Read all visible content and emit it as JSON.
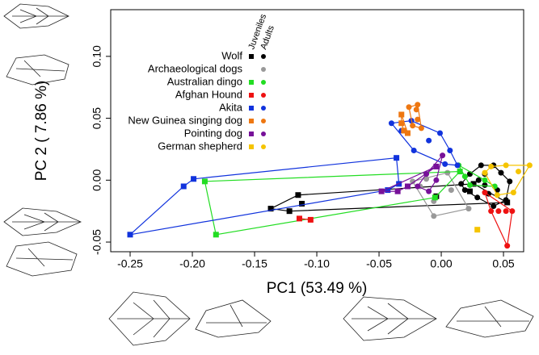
{
  "chart_data": {
    "type": "scatter",
    "xlabel": "PC1 (53.49 %)",
    "ylabel": "PC 2 ( 7.86 %)",
    "xlim": [
      -0.2656,
      0.0662
    ],
    "ylim": [
      -0.0578,
      0.1377
    ],
    "xticks": [
      {
        "value": -0.25,
        "label": "-0.25"
      },
      {
        "value": -0.2,
        "label": "-0.20"
      },
      {
        "value": -0.15,
        "label": "-0.15"
      },
      {
        "value": -0.1,
        "label": "-0.10"
      },
      {
        "value": -0.05,
        "label": "-0.05"
      },
      {
        "value": 0,
        "label": "0.00"
      },
      {
        "value": 0.05,
        "label": "0.05"
      }
    ],
    "yticks": [
      {
        "value": -0.05,
        "label": "-0.05"
      },
      {
        "value": 0,
        "label": "0.00"
      },
      {
        "value": 0.05,
        "label": "0.05"
      },
      {
        "value": 0.1,
        "label": "0.10"
      }
    ],
    "legend_columns": [
      "Juveniles",
      "Adults"
    ],
    "series": [
      {
        "name": "Wolf",
        "color": "#000000",
        "juveniles": {
          "x": [
            -0.137,
            -0.122,
            -0.115,
            -0.112,
            -0.004,
            0.023,
            0.026,
            0.053
          ],
          "y": [
            -0.023,
            -0.025,
            -0.012,
            -0.019,
            -0.013,
            -0.009,
            -0.003,
            -0.018
          ]
        },
        "adults": {
          "x": [
            0.032,
            0.042,
            0.055,
            0.052,
            0.042,
            0.029,
            0.019,
            0.023,
            0.035,
            0.045,
            0.03,
            0.038,
            0.048,
            0.016,
            0.035
          ],
          "y": [
            0.012,
            0.012,
            -0.001,
            -0.016,
            -0.021,
            -0.014,
            -0.008,
            0.005,
            -0.004,
            -0.008,
            0.0,
            -0.011,
            0.006,
            -0.003,
            0.005
          ]
        }
      },
      {
        "name": "Archaeological dogs",
        "color": "#999999",
        "juveniles": {
          "x": [],
          "y": []
        },
        "adults": {
          "x": [
            -0.023,
            -0.006,
            -0.006,
            0.008,
            -0.012,
            -0.017,
            0.005,
            0.022
          ],
          "y": [
            -0.001,
            -0.017,
            -0.029,
            -0.008,
            0.001,
            -0.005,
            0.006,
            -0.023
          ]
        }
      },
      {
        "name": "Australian dingo",
        "color": "#22dd22",
        "juveniles": {
          "x": [
            -0.19,
            -0.181,
            -0.005,
            0.015
          ],
          "y": [
            -0.001,
            -0.044,
            -0.014,
            0.007
          ]
        },
        "adults": {
          "x": [
            0.014,
            0.023,
            0.035,
            0.019,
            0.043
          ],
          "y": [
            0.012,
            -0.004,
            0.0,
            0.003,
            -0.005
          ]
        }
      },
      {
        "name": "Afghan Hound",
        "color": "#ee1111",
        "juveniles": {
          "x": [
            -0.114,
            -0.105
          ],
          "y": [
            -0.031,
            -0.032
          ]
        },
        "adults": {
          "x": [
            0.04,
            0.046,
            0.052,
            0.057,
            0.053,
            0.035
          ],
          "y": [
            -0.025,
            -0.025,
            -0.025,
            -0.025,
            -0.053,
            -0.01
          ]
        }
      },
      {
        "name": "Akita",
        "color": "#1133dd",
        "juveniles": {
          "x": [
            -0.25,
            -0.207,
            -0.199,
            -0.036,
            -0.043,
            -0.034
          ],
          "y": [
            -0.044,
            -0.005,
            0.001,
            0.018,
            -0.008,
            -0.003
          ]
        },
        "adults": {
          "x": [
            -0.04,
            -0.024,
            -0.001,
            0.007,
            0.013,
            -0.032,
            -0.022,
            -0.01,
            0.003
          ],
          "y": [
            0.046,
            0.048,
            0.038,
            0.024,
            0.012,
            0.04,
            0.024,
            0.032,
            0.013
          ]
        }
      },
      {
        "name": "New Guinea singing dog",
        "color": "#ee7711",
        "juveniles": {
          "x": [
            -0.032,
            -0.032,
            -0.03,
            -0.027
          ],
          "y": [
            0.046,
            0.053,
            0.04,
            0.038
          ]
        },
        "adults": {
          "x": [
            -0.026,
            -0.019,
            -0.019,
            -0.016,
            -0.023,
            -0.02
          ],
          "y": [
            0.059,
            0.061,
            0.049,
            0.042,
            0.044,
            0.057
          ]
        }
      },
      {
        "name": "Pointing dog",
        "color": "#771199",
        "juveniles": {
          "x": [
            -0.048,
            -0.035,
            -0.004,
            -0.027
          ],
          "y": [
            -0.009,
            -0.009,
            0.011,
            -0.005
          ]
        },
        "adults": {
          "x": [
            -0.019,
            -0.012,
            0.001,
            -0.004,
            -0.01
          ],
          "y": [
            -0.005,
            0.005,
            0.02,
            0.0,
            -0.009
          ]
        }
      },
      {
        "name": "German shepherd",
        "color": "#f5c400",
        "juveniles": {
          "x": [
            0.029
          ],
          "y": [
            -0.04
          ]
        },
        "adults": {
          "x": [
            0.04,
            0.071,
            0.062,
            0.052,
            0.058,
            0.045,
            0.035
          ],
          "y": [
            0.011,
            0.012,
            0.007,
            0.012,
            -0.01,
            -0.012,
            0.006
          ]
        }
      }
    ]
  }
}
